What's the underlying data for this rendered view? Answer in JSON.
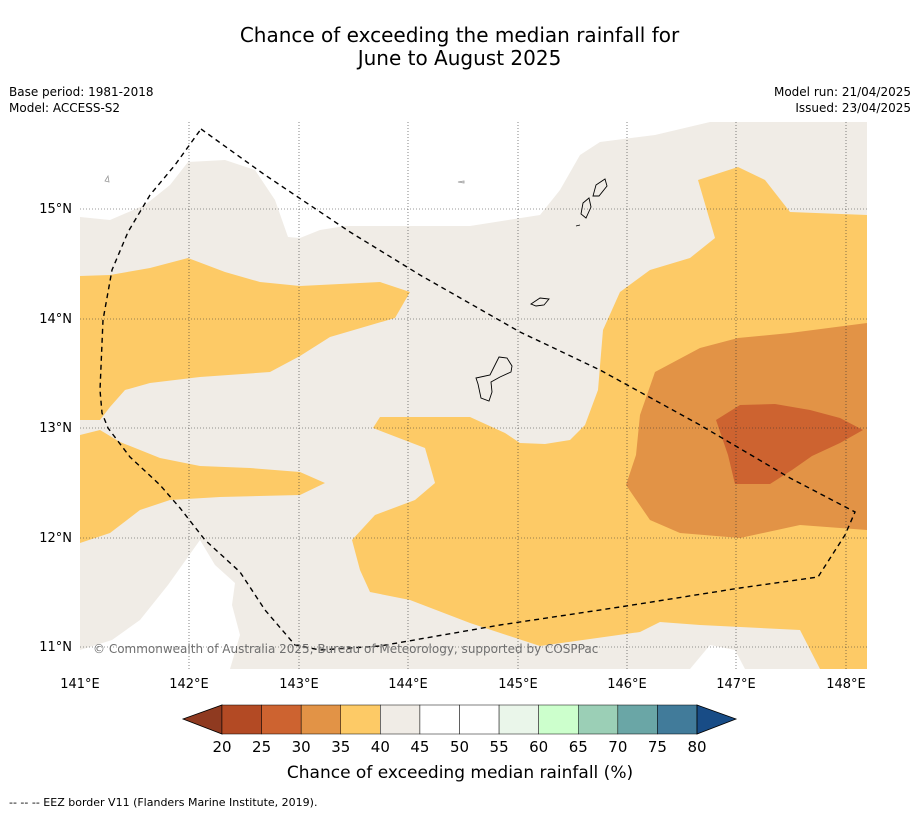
{
  "title": {
    "line1": "Chance of exceeding the median rainfall for",
    "line2": "June to August 2025"
  },
  "info": {
    "base_period": "Base period: 1981-2018",
    "model": "Model: ACCESS-S2",
    "model_run": "Model run: 21/04/2025",
    "issued": "Issued: 23/04/2025"
  },
  "map": {
    "lat_labels": [
      "15°N",
      "14°N",
      "13°N",
      "12°N",
      "11°N"
    ],
    "lon_labels": [
      "141°E",
      "142°E",
      "143°E",
      "144°E",
      "145°E",
      "146°E",
      "147°E",
      "148°E"
    ],
    "copyright": "© Commonwealth of Australia 2025, Bureau of Meteorology, supported by COSPPac"
  },
  "colorbar": {
    "ticks": [
      "20",
      "25",
      "30",
      "35",
      "40",
      "45",
      "50",
      "55",
      "60",
      "65",
      "70",
      "75",
      "80"
    ],
    "colors": [
      "#b34a24",
      "#cd6330",
      "#e29346",
      "#fdca66",
      "#f0ece6",
      "#ffffff",
      "#ffffff",
      "#eaf6ea",
      "#ccffcc",
      "#9bcfb6",
      "#6aa6a6",
      "#417b9a"
    ],
    "under_color": "#8f3a20",
    "over_color": "#184c86",
    "label": "Chance of exceeding median rainfall (%)"
  },
  "footnote": "--  --  -- EEZ border V11 (Flanders Marine Institute, 2019)."
}
